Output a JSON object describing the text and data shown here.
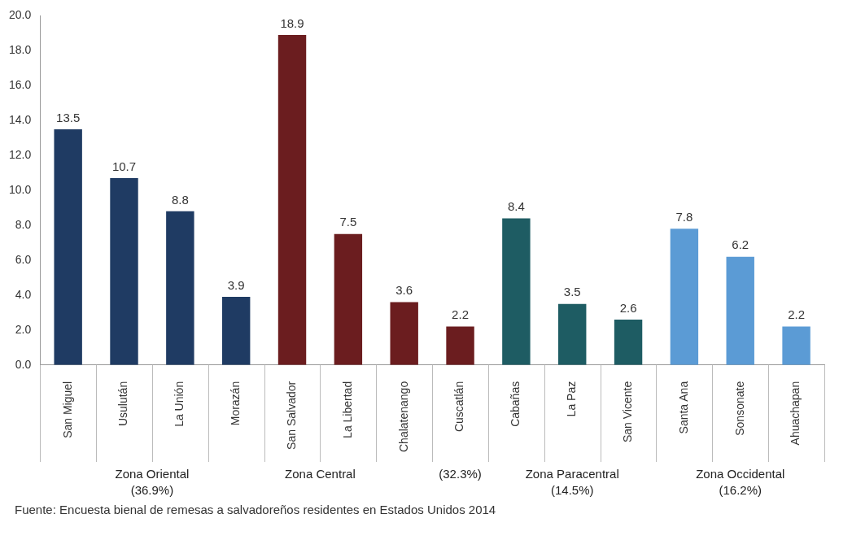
{
  "chart_data": {
    "type": "bar",
    "categories": [
      "San Miguel",
      "Usulután",
      "La Unión",
      "Morazán",
      "San Salvador",
      "La Libertad",
      "Chalatenango",
      "Cuscatlán",
      "Cabañas",
      "La Paz",
      "San Vicente",
      "Santa Ana",
      "Sonsonate",
      "Ahuachapan"
    ],
    "values": [
      13.5,
      10.7,
      8.8,
      3.9,
      18.9,
      7.5,
      3.6,
      2.2,
      8.4,
      3.5,
      2.6,
      7.8,
      6.2,
      2.2
    ],
    "colors": [
      "#1f3b63",
      "#1f3b63",
      "#1f3b63",
      "#1f3b63",
      "#6b1d1f",
      "#6b1d1f",
      "#6b1d1f",
      "#6b1d1f",
      "#1e5c63",
      "#1e5c63",
      "#1e5c63",
      "#5b9bd5",
      "#5b9bd5",
      "#5b9bd5"
    ],
    "ylim": [
      0,
      20
    ],
    "yticks": [
      {
        "value": 0,
        "label": "0.0"
      },
      {
        "value": 2,
        "label": "2.0"
      },
      {
        "value": 4,
        "label": "4.0"
      },
      {
        "value": 6,
        "label": "6.0"
      },
      {
        "value": 8,
        "label": "8.0"
      },
      {
        "value": 10,
        "label": "10.0"
      },
      {
        "value": 12,
        "label": "12.0"
      },
      {
        "value": 14,
        "label": "14.0"
      },
      {
        "value": 16,
        "label": "16.0"
      },
      {
        "value": 18,
        "label": "18.0"
      },
      {
        "value": 20,
        "label": "20.0"
      }
    ],
    "data_labels": true,
    "grid": false,
    "legend": false,
    "annotations": [
      "Zona Oriental (36.9%)",
      "Zona Central",
      "(32.3%)",
      "Zona Paracentral (14.5%)",
      "Zona Occidental (16.2%)",
      "Fuente: Encuesta bienal de remesas a salvadoreños residentes en Estados Unidos 2014"
    ]
  }
}
